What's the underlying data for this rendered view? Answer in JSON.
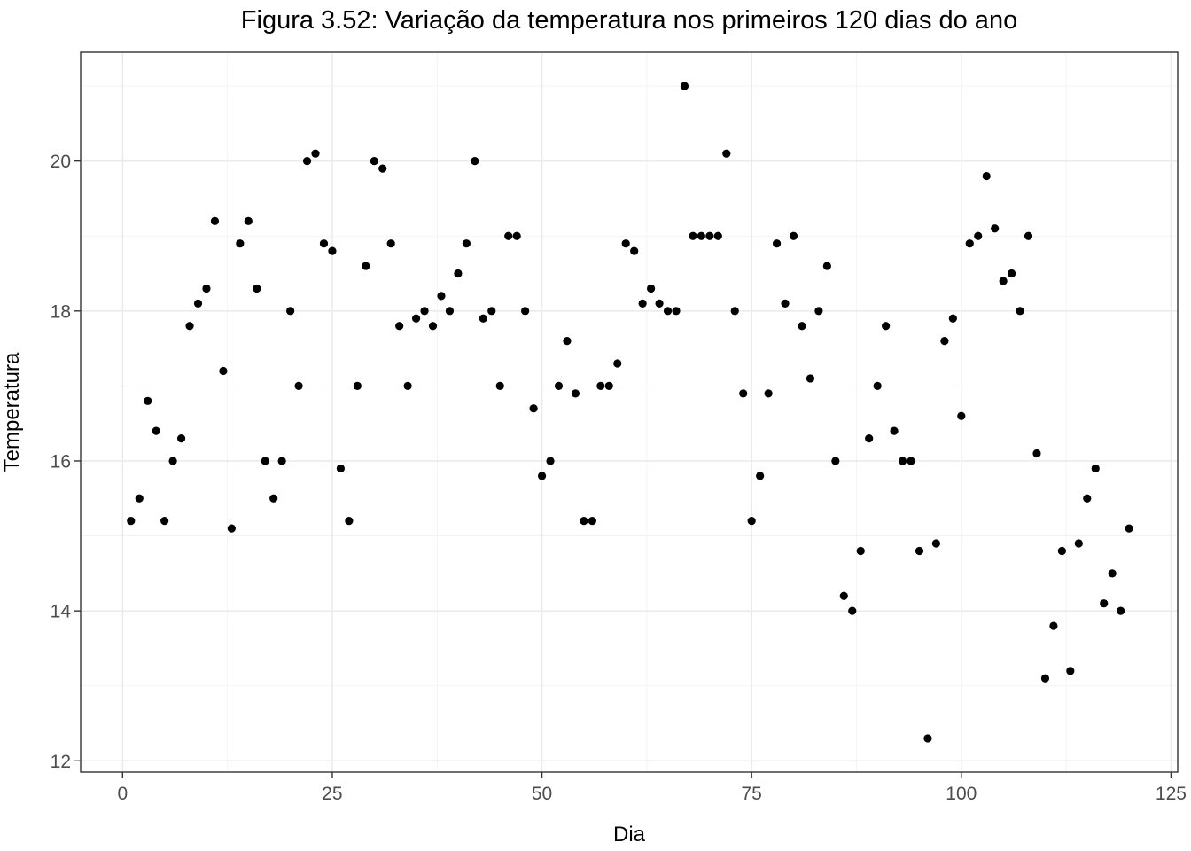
{
  "chart_data": {
    "type": "scatter",
    "title": "Figura 3.52: Variação da temperatura nos primeiros 120 dias do ano",
    "xlabel": "Dia",
    "ylabel": "Temperatura",
    "xlim": [
      -5,
      125.8
    ],
    "ylim": [
      11.85,
      21.45
    ],
    "xticks": [
      0,
      25,
      50,
      75,
      100,
      125
    ],
    "yticks": [
      12,
      14,
      16,
      18,
      20
    ],
    "grid": true,
    "point_color": "#000000",
    "x": [
      1,
      2,
      3,
      4,
      5,
      6,
      7,
      8,
      9,
      10,
      11,
      12,
      13,
      14,
      15,
      16,
      17,
      18,
      19,
      20,
      21,
      22,
      23,
      24,
      25,
      26,
      27,
      28,
      29,
      30,
      31,
      32,
      33,
      34,
      35,
      36,
      37,
      38,
      39,
      40,
      41,
      42,
      43,
      44,
      45,
      46,
      47,
      48,
      49,
      50,
      51,
      52,
      53,
      54,
      55,
      56,
      57,
      58,
      59,
      60,
      61,
      62,
      63,
      64,
      65,
      66,
      67,
      68,
      69,
      70,
      71,
      72,
      73,
      74,
      75,
      76,
      77,
      78,
      79,
      80,
      81,
      82,
      83,
      84,
      85,
      86,
      87,
      88,
      89,
      90,
      91,
      92,
      93,
      94,
      95,
      96,
      97,
      98,
      99,
      100,
      101,
      102,
      103,
      104,
      105,
      106,
      107,
      108,
      109,
      110,
      111,
      112,
      113,
      114,
      115,
      116,
      117,
      118,
      119,
      120
    ],
    "y": [
      15.2,
      15.5,
      16.8,
      16.4,
      15.2,
      16.0,
      16.3,
      17.8,
      18.1,
      18.3,
      19.2,
      17.2,
      15.1,
      18.9,
      19.2,
      18.3,
      16.0,
      15.5,
      16.0,
      18.0,
      17.0,
      20.0,
      20.1,
      18.9,
      18.8,
      15.9,
      15.2,
      17.0,
      18.6,
      20.0,
      19.9,
      18.9,
      17.8,
      17.0,
      17.9,
      18.0,
      17.8,
      18.2,
      18.0,
      18.5,
      18.9,
      20.0,
      17.9,
      18.0,
      17.0,
      19.0,
      19.0,
      18.0,
      16.7,
      15.8,
      16.0,
      17.0,
      17.6,
      16.9,
      15.2,
      15.2,
      17.0,
      17.0,
      17.3,
      18.9,
      18.8,
      18.1,
      18.3,
      18.1,
      18.0,
      18.0,
      21.0,
      19.0,
      19.0,
      19.0,
      19.0,
      20.1,
      18.0,
      16.9,
      15.2,
      15.8,
      16.9,
      18.9,
      18.1,
      19.0,
      17.8,
      17.1,
      18.0,
      18.6,
      16.0,
      14.2,
      14.0,
      14.8,
      16.3,
      17.0,
      17.8,
      16.4,
      16.0,
      16.0,
      14.8,
      12.3,
      14.9,
      17.6,
      17.9,
      16.6,
      18.9,
      19.0,
      19.8,
      19.1,
      18.4,
      18.5,
      18.0,
      19.0,
      16.1,
      13.1,
      13.8,
      14.8,
      13.2,
      14.9,
      15.5,
      15.9,
      14.1,
      14.5,
      14.0,
      15.1
    ]
  }
}
